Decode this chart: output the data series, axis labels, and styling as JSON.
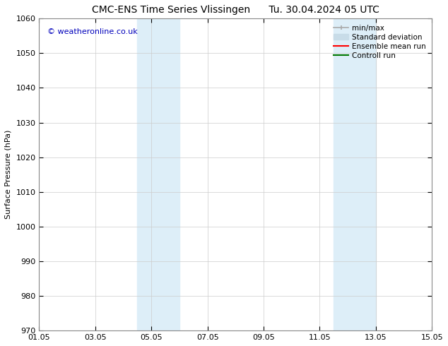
{
  "title_left": "CMC-ENS Time Series Vlissingen",
  "title_right": "Tu. 30.04.2024 05 UTC",
  "ylabel": "Surface Pressure (hPa)",
  "ylim": [
    970,
    1060
  ],
  "yticks": [
    970,
    980,
    990,
    1000,
    1010,
    1020,
    1030,
    1040,
    1050,
    1060
  ],
  "xtick_labels": [
    "01.05",
    "03.05",
    "05.05",
    "07.05",
    "09.05",
    "11.05",
    "13.05",
    "15.05"
  ],
  "xtick_positions": [
    0,
    2,
    4,
    6,
    8,
    10,
    12,
    14
  ],
  "xlim": [
    0,
    14
  ],
  "shaded_bands": [
    {
      "xstart": 3.5,
      "xend": 5.0,
      "color": "#ddeef8"
    },
    {
      "xstart": 10.5,
      "xend": 12.0,
      "color": "#ddeef8"
    }
  ],
  "watermark_text": "© weatheronline.co.uk",
  "watermark_color": "#0000bb",
  "background_color": "#ffffff",
  "plot_bg_color": "#ffffff",
  "grid_color": "#cccccc",
  "legend_entries": [
    {
      "label": "min/max",
      "color": "#aaaaaa"
    },
    {
      "label": "Standard deviation",
      "color": "#c8dce8"
    },
    {
      "label": "Ensemble mean run",
      "color": "#ff0000"
    },
    {
      "label": "Controll run",
      "color": "#007700"
    }
  ],
  "title_fontsize": 10,
  "axis_label_fontsize": 8,
  "tick_fontsize": 8,
  "legend_fontsize": 7.5,
  "watermark_fontsize": 8
}
